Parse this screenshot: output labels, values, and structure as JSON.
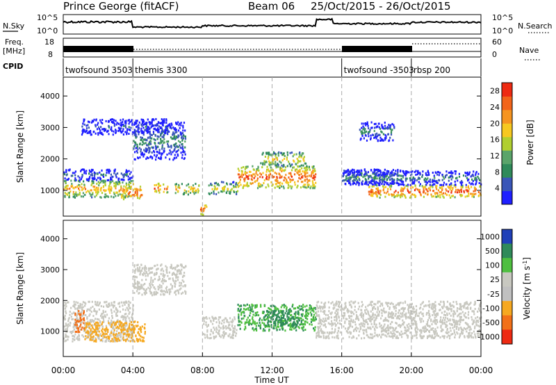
{
  "header": {
    "station": "Prince George (fitACF)",
    "beam": "Beam 06",
    "date_range": "25/Oct/2015 - 26/Oct/2015"
  },
  "noise_panel": {
    "left_label": "N.Sky",
    "right_label": "N.Search",
    "left_ticks": [
      "10^5",
      "10^0"
    ],
    "right_ticks": [
      "10^5",
      "10^0"
    ]
  },
  "freq_panel": {
    "left_label_line1": "Freq.",
    "left_label_line2": "[MHz]",
    "right_label": "Nave",
    "left_ticks": [
      "18",
      "8"
    ],
    "right_ticks": [
      "60",
      "0"
    ]
  },
  "cpid": {
    "label": "CPID",
    "modes": [
      {
        "start_hour": 0,
        "end_hour": 4,
        "name": "twofsound 3503"
      },
      {
        "start_hour": 4,
        "end_hour": 16,
        "name": "themis 3300"
      },
      {
        "start_hour": 16,
        "end_hour": 20,
        "name": "twofsound -3503"
      },
      {
        "start_hour": 20,
        "end_hour": 24,
        "name": "rbsp 200"
      }
    ]
  },
  "chart_data": [
    {
      "type": "heatmap",
      "panel": "power",
      "xlabel": "",
      "ylabel": "Slant Range [km]",
      "xlim": [
        0,
        24
      ],
      "ylim": [
        180,
        4600
      ],
      "yticks": [
        1000,
        2000,
        3000,
        4000
      ],
      "colorbar": {
        "label": "Power [dB]",
        "ticks": [
          "4",
          "8",
          "12",
          "16",
          "20",
          "24",
          "28"
        ],
        "range": [
          0,
          30
        ],
        "colors": [
          "#1f1fff",
          "#3a56b8",
          "#2f8a5a",
          "#5aa46a",
          "#b0cf30",
          "#f6c820",
          "#f59420",
          "#f2641a",
          "#ee2a12"
        ]
      },
      "bands": [
        {
          "t0": 0.0,
          "t1": 4.0,
          "r0": 800,
          "r1": 1350,
          "level": 22
        },
        {
          "t0": 0.0,
          "t1": 4.0,
          "r0": 1350,
          "r1": 1700,
          "level": 8
        },
        {
          "t0": 3.3,
          "t1": 4.5,
          "r0": 750,
          "r1": 1150,
          "level": 27
        },
        {
          "t0": 5.2,
          "t1": 6.0,
          "r0": 950,
          "r1": 1250,
          "level": 26
        },
        {
          "t0": 6.4,
          "t1": 7.8,
          "r0": 900,
          "r1": 1250,
          "level": 21
        },
        {
          "t0": 7.8,
          "t1": 8.2,
          "r0": 250,
          "r1": 600,
          "level": 28
        },
        {
          "t0": 8.3,
          "t1": 10.0,
          "r0": 900,
          "r1": 1300,
          "level": 18
        },
        {
          "t0": 10.0,
          "t1": 14.5,
          "r0": 1100,
          "r1": 1800,
          "level": 26
        },
        {
          "t0": 11.3,
          "t1": 13.9,
          "r0": 1800,
          "r1": 2250,
          "level": 20
        },
        {
          "t0": 16.0,
          "t1": 19.5,
          "r0": 1200,
          "r1": 1700,
          "level": 12
        },
        {
          "t0": 17.5,
          "t1": 24.0,
          "r0": 800,
          "r1": 1200,
          "level": 27
        },
        {
          "t0": 16.0,
          "t1": 24.0,
          "r0": 1200,
          "r1": 1650,
          "level": 9
        },
        {
          "t0": 1.0,
          "t1": 6.0,
          "r0": 2800,
          "r1": 3300,
          "level": 6
        },
        {
          "t0": 17.0,
          "t1": 19.0,
          "r0": 2600,
          "r1": 3200,
          "level": 10
        },
        {
          "t0": 4.0,
          "t1": 7.0,
          "r0": 2000,
          "r1": 3200,
          "level": 10
        }
      ]
    },
    {
      "type": "heatmap",
      "panel": "velocity",
      "xlabel": "Time UT",
      "ylabel": "Slant Range [km]",
      "xlim": [
        0,
        24
      ],
      "ylim": [
        180,
        4600
      ],
      "yticks": [
        1000,
        2000,
        3000,
        4000
      ],
      "xticks": [
        "00:00",
        "04:00",
        "08:00",
        "12:00",
        "16:00",
        "20:00",
        "00:00"
      ],
      "colorbar": {
        "label": "Velocity [m s^-1]",
        "ticks": [
          "1000",
          "500",
          "100",
          "25",
          "-25",
          "-100",
          "-500",
          "-1000"
        ],
        "colors": [
          "#2040b8",
          "#2f8a5a",
          "#4fbf40",
          "#c8c8c0",
          "#c0c0c0",
          "#f6a820",
          "#f27018",
          "#ee2a12"
        ]
      },
      "bands": [
        {
          "t0": 0.0,
          "t1": 4.0,
          "r0": 700,
          "r1": 2000,
          "class": "ground"
        },
        {
          "t0": 1.2,
          "t1": 4.7,
          "r0": 700,
          "r1": 1350,
          "class": "-100"
        },
        {
          "t0": 0.6,
          "t1": 1.2,
          "r0": 1000,
          "r1": 1700,
          "class": "-500"
        },
        {
          "t0": 8.0,
          "t1": 10.0,
          "r0": 800,
          "r1": 1500,
          "class": "ground"
        },
        {
          "t0": 10.0,
          "t1": 14.5,
          "r0": 1050,
          "r1": 1900,
          "class": "100"
        },
        {
          "t0": 11.5,
          "t1": 13.5,
          "r0": 1200,
          "r1": 1700,
          "class": "500"
        },
        {
          "t0": 14.5,
          "t1": 24.0,
          "r0": 800,
          "r1": 2000,
          "class": "ground"
        },
        {
          "t0": 4.0,
          "t1": 7.0,
          "r0": 2200,
          "r1": 3200,
          "class": "ground"
        }
      ]
    }
  ]
}
